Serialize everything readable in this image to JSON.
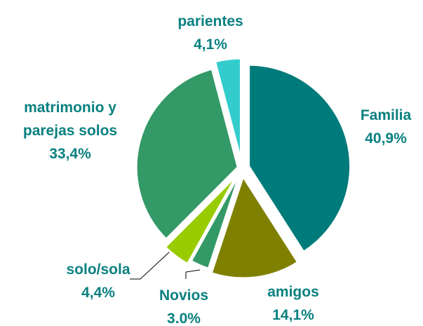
{
  "chart_data": {
    "type": "pie",
    "categories": [
      "Familia",
      "amigos",
      "Novios",
      "solo/sola",
      "matrimonio y parejas solos",
      "parientes"
    ],
    "values": [
      40.9,
      14.1,
      3.0,
      4.4,
      33.4,
      4.1
    ],
    "value_labels": [
      "40,9%",
      "14,1%",
      "3.0%",
      "4,4%",
      "33,4%",
      "4,1%"
    ],
    "colors": [
      "#007b7b",
      "#808000",
      "#339966",
      "#99cc00",
      "#339966",
      "#33cccc"
    ]
  }
}
